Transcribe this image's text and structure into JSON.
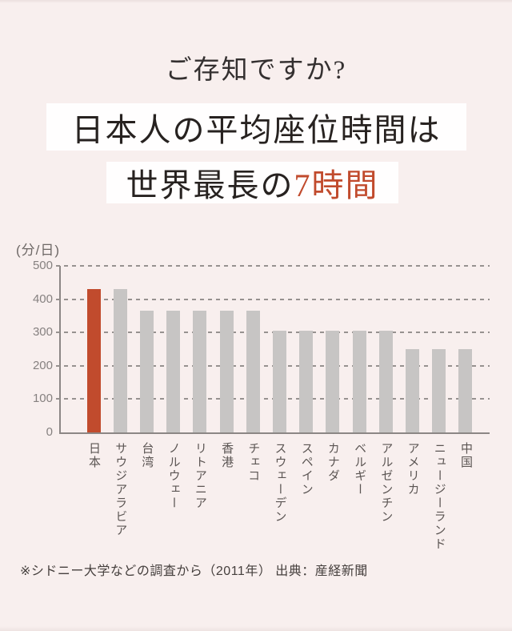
{
  "page": {
    "background": "#f8efee",
    "accent_red": "#c14b2d"
  },
  "header": {
    "title": "ご存知ですか?"
  },
  "headline": {
    "line1": "日本人の平均座位時間は",
    "line2_prefix": "世界最長の",
    "line2_highlight": "7時間"
  },
  "chart_data": {
    "type": "bar",
    "unit_label": "(分/日)",
    "ylim": [
      0,
      500
    ],
    "y_ticks": [
      0,
      100,
      200,
      300,
      400,
      500
    ],
    "grid": "dashed-horizontal",
    "categories": [
      "日本",
      "サウジアラビア",
      "台湾",
      "ノルウェー",
      "リトアニア",
      "香港",
      "チェコ",
      "スウェーデン",
      "スペイン",
      "カナダ",
      "ベルギー",
      "アルゼンチン",
      "アメリカ",
      "ニュージーランド",
      "中国"
    ],
    "values": [
      430,
      430,
      365,
      365,
      365,
      365,
      365,
      305,
      305,
      305,
      305,
      305,
      250,
      250,
      250
    ],
    "highlight_index": 0,
    "highlight_color": "#c14b2d",
    "bar_color": "#c7c5c4"
  },
  "footer": {
    "note": "※シドニー大学などの調査から（2011年） 出典：産経新聞"
  }
}
